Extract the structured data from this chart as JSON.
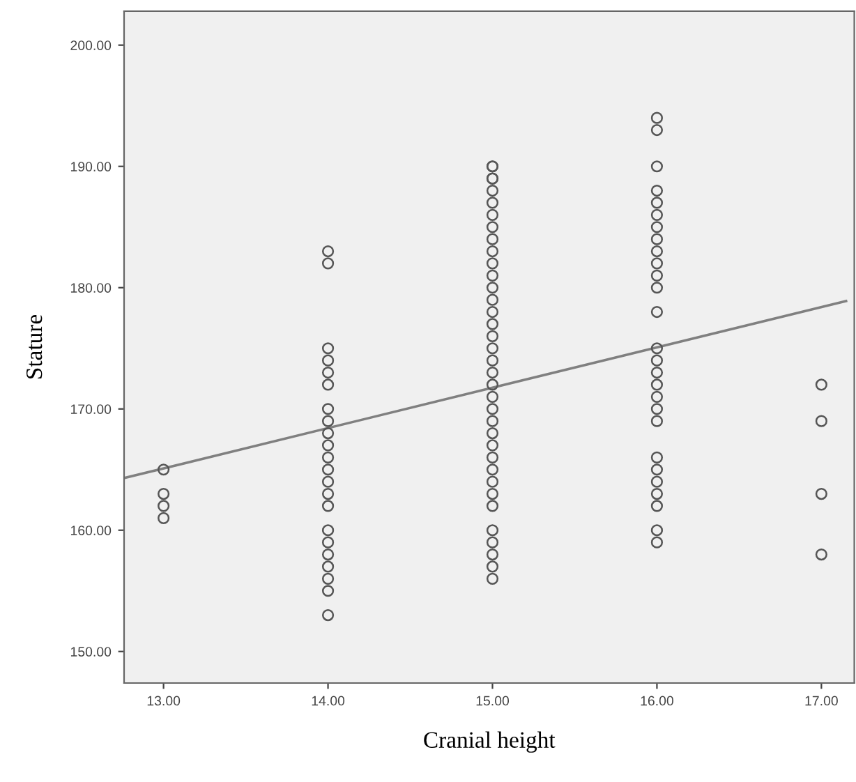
{
  "chart_data": {
    "type": "scatter",
    "xlabel": "Cranial height",
    "ylabel": "Stature",
    "grid": false,
    "xlim": [
      12.76,
      17.2
    ],
    "ylim": [
      147.4,
      202.8
    ],
    "xticks": [
      {
        "value": 13,
        "label": "13.00"
      },
      {
        "value": 14,
        "label": "14.00"
      },
      {
        "value": 15,
        "label": "15.00"
      },
      {
        "value": 16,
        "label": "16.00"
      },
      {
        "value": 17,
        "label": "17.00"
      }
    ],
    "yticks": [
      {
        "value": 150,
        "label": "150.00"
      },
      {
        "value": 160,
        "label": "160.00"
      },
      {
        "value": 170,
        "label": "170.00"
      },
      {
        "value": 180,
        "label": "180.00"
      },
      {
        "value": 190,
        "label": "190.00"
      },
      {
        "value": 200,
        "label": "200.00"
      }
    ],
    "series": [
      {
        "marker": "circle",
        "color": "#555555",
        "x": [
          13,
          13,
          13,
          13,
          14,
          14,
          14,
          14,
          14,
          14,
          14,
          14,
          14,
          14,
          14,
          14,
          14,
          14,
          14,
          14,
          14,
          14,
          14,
          14,
          14,
          14,
          15,
          15,
          15,
          15,
          15,
          15,
          15,
          15,
          15,
          15,
          15,
          15,
          15,
          15,
          15,
          15,
          15,
          15,
          15,
          15,
          15,
          15,
          15,
          15,
          15,
          15,
          15,
          15,
          15,
          15,
          15,
          15,
          15,
          15,
          15,
          15,
          16,
          16,
          16,
          16,
          16,
          16,
          16,
          16,
          16,
          16,
          16,
          16,
          16,
          16,
          16,
          16,
          16,
          16,
          16,
          16,
          16,
          16,
          16,
          16,
          16,
          16,
          16,
          17,
          17,
          17,
          17
        ],
        "values": [
          165,
          163,
          162,
          161,
          183,
          182,
          175,
          174,
          173,
          172,
          170,
          169,
          168,
          167,
          166,
          165,
          164,
          163,
          162,
          160,
          159,
          158,
          157,
          156,
          155,
          153,
          156,
          157,
          158,
          159,
          160,
          162,
          163,
          164,
          165,
          166,
          167,
          168,
          169,
          170,
          171,
          172,
          173,
          174,
          175,
          176,
          177,
          178,
          179,
          180,
          181,
          182,
          183,
          184,
          185,
          186,
          187,
          188,
          189,
          190,
          190,
          189,
          194,
          193,
          190,
          188,
          187,
          186,
          185,
          184,
          183,
          182,
          181,
          180,
          178,
          175,
          174,
          173,
          172,
          171,
          170,
          169,
          166,
          165,
          164,
          163,
          162,
          160,
          159,
          172,
          169,
          163,
          158
        ]
      },
      {
        "type": "line",
        "marker": "none",
        "color": "#808080",
        "x": [
          12.76,
          17.15
        ],
        "values": [
          164.3,
          178.9
        ]
      }
    ]
  }
}
